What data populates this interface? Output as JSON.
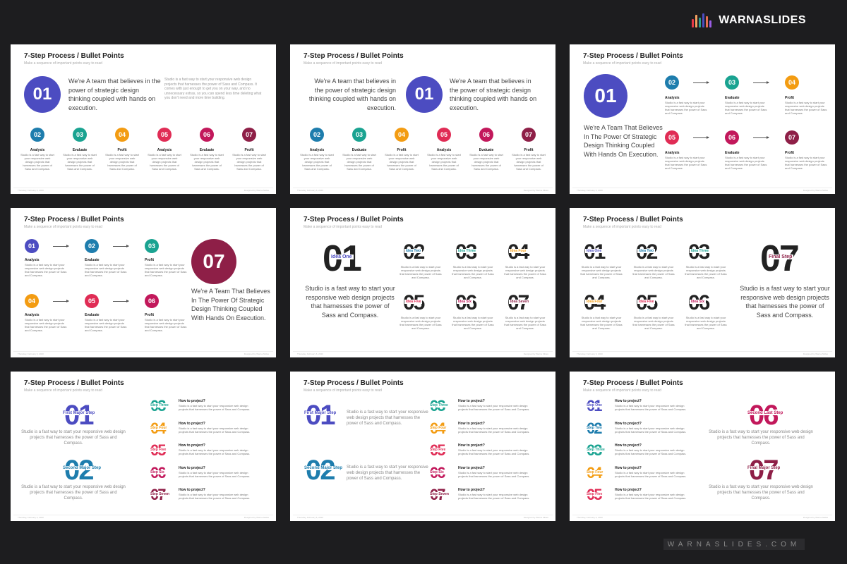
{
  "brand": {
    "name": "WARNASLIDES",
    "footer": "WARNASLIDES.COM",
    "bar_colors": [
      "#e63946",
      "#f4a261",
      "#2a9d8f",
      "#4c4cc1",
      "#e76f51",
      "#9b5de5"
    ]
  },
  "colors": {
    "s1": "#4c4cc1",
    "s2": "#1e7dad",
    "s3": "#1aa391",
    "s4": "#f39c12",
    "s5": "#e02c55",
    "s6": "#c2185b",
    "s7": "#8e1f47"
  },
  "slide_common": {
    "title": "7-Step Process / Bullet Points",
    "subtitle": "Make a sequence of important points easy to read",
    "footer_date": "Thursday, February 6, 2020",
    "footer_credit": "Designed by Warna Slides"
  },
  "slide1": {
    "num": "01",
    "lead": "We're A team that believes in the power of strategic design thinking coupled with hands on execution.",
    "body": "Studio is a fast way to start your responsive web design projects that harnesses the power of Sass and Compass. It comes with just enough to get you on your way, and no unnecessary extras, so you can spend less time deleting what you don't need and more time building.",
    "page": "2",
    "steps": [
      {
        "num": "02",
        "label": "Analysis"
      },
      {
        "num": "03",
        "label": "Evaluate"
      },
      {
        "num": "04",
        "label": "Profit"
      },
      {
        "num": "05",
        "label": "Analysis"
      },
      {
        "num": "06",
        "label": "Evaluate"
      },
      {
        "num": "07",
        "label": "Profit"
      }
    ],
    "step_desc": "Studio is a fast way to start your responsive web design projects that harnesses the power of Sass and Compass."
  },
  "slide2": {
    "num": "01",
    "lead": "We're A team that believes in the power of strategic design thinking coupled with hands on execution.",
    "steps": [
      "02",
      "03",
      "04",
      "05",
      "06",
      "07"
    ],
    "labels": [
      "Analysis",
      "Evaluate",
      "Profit",
      "Analysis",
      "Evaluate",
      "Profit"
    ],
    "step_desc": "Studio is a fast way to start your responsive web design projects that harnesses the power of Sass and Compass."
  },
  "slide3": {
    "num": "01",
    "lead": "We're A Team That Believes In The Power Of Strategic Design Thinking Coupled With Hands On Execution.",
    "steps": [
      "02",
      "03",
      "04",
      "05",
      "06",
      "07"
    ],
    "labels": [
      "Analysis",
      "Evaluate",
      "Profit",
      "Analysis",
      "Evaluate",
      "Profit"
    ],
    "step_desc": "Studio is a fast way to start your responsive web design projects that harnesses the power of Sass and Compass."
  },
  "slide4": {
    "num": "07",
    "lead": "We're A Team That Believes In The Power Of Strategic Design Thinking Coupled With Hands On Execution.",
    "steps": [
      "01",
      "02",
      "03",
      "04",
      "05",
      "06"
    ],
    "labels": [
      "Analysis",
      "Evaluate",
      "Profit",
      "Analysis",
      "Evaluate",
      "Profit"
    ],
    "step_desc": "Studio is a fast way to start your responsive web design projects that harnesses the power of Sass and Compass."
  },
  "slide5": {
    "big": "01",
    "big_tag": "Idea One",
    "text": "Studio is a fast way to start your responsive web design projects that harnesses the power of Sass and Compass.",
    "items": [
      {
        "num": "02",
        "tag": "Idea Two"
      },
      {
        "num": "03",
        "tag": "Idea Three"
      },
      {
        "num": "04",
        "tag": "Idea Four"
      },
      {
        "num": "05",
        "tag": "Idea Five"
      },
      {
        "num": "06",
        "tag": "Idea Six"
      },
      {
        "num": "07",
        "tag": "Idea Seven"
      }
    ],
    "desc": "Studio is a fast way to start your responsive web design projects that harnesses the power of Sass and Compass."
  },
  "slide6": {
    "big": "07",
    "big_tag": "Final Step",
    "text": "Studio is a fast way to start your responsive web design projects that harnesses the power of Sass and Compass.",
    "items": [
      {
        "num": "01",
        "tag": "Idea One"
      },
      {
        "num": "02",
        "tag": "Idea Two"
      },
      {
        "num": "03",
        "tag": "Idea Three"
      },
      {
        "num": "04",
        "tag": "Idea Four"
      },
      {
        "num": "05",
        "tag": "Idea Five"
      },
      {
        "num": "06",
        "tag": "Idea Six"
      }
    ],
    "desc": "Studio is a fast way to start your responsive web design projects that harnesses the power of Sass and Compass."
  },
  "slide7": {
    "majors": [
      {
        "num": "01",
        "tag": "First Major Step"
      },
      {
        "num": "02",
        "tag": "Second Major Step"
      }
    ],
    "major_text": "Studio is a fast way to start your responsive web design projects that harnesses the power of Sass and Compass.",
    "list": [
      {
        "num": "03",
        "tag": "Step Three"
      },
      {
        "num": "04",
        "tag": "Step Four"
      },
      {
        "num": "05",
        "tag": "Step Five"
      },
      {
        "num": "06",
        "tag": "Step Six"
      },
      {
        "num": "07",
        "tag": "Step Seven"
      }
    ],
    "heading": "How to project?",
    "list_desc": "Studio is a fast way to start your responsive web design projects that harnesses the power of Sass and Compass."
  },
  "slide8": {
    "majors": [
      {
        "num": "01",
        "tag": "First Major Step"
      },
      {
        "num": "02",
        "tag": "Second Major Step"
      }
    ],
    "major_text": "Studio is a fast way to start your responsive web design projects that harnesses the power of Sass and Compass.",
    "list": [
      {
        "num": "03",
        "tag": "Step Three"
      },
      {
        "num": "04",
        "tag": "Step Four"
      },
      {
        "num": "05",
        "tag": "Step Five"
      },
      {
        "num": "06",
        "tag": "Step Six"
      },
      {
        "num": "07",
        "tag": "Step Seven"
      }
    ],
    "heading": "How to project?",
    "list_desc": "Studio is a fast way to start your responsive web design projects that harnesses the power of Sass and Compass."
  },
  "slide9": {
    "list": [
      {
        "num": "01",
        "tag": "Step One"
      },
      {
        "num": "02",
        "tag": "Step Two"
      },
      {
        "num": "03",
        "tag": "Step Three"
      },
      {
        "num": "04",
        "tag": "Step Four"
      },
      {
        "num": "05",
        "tag": "Step Five"
      }
    ],
    "heading": "How to project?",
    "list_desc": "Studio is a fast way to start your responsive web design projects that harnesses the power of Sass and Compass.",
    "majors": [
      {
        "num": "06",
        "tag": "Second Last Step"
      },
      {
        "num": "07",
        "tag": "Final Major Step"
      }
    ],
    "major_text": "Studio is a fast way to start your responsive web design projects that harnesses the power of Sass and Compass."
  }
}
